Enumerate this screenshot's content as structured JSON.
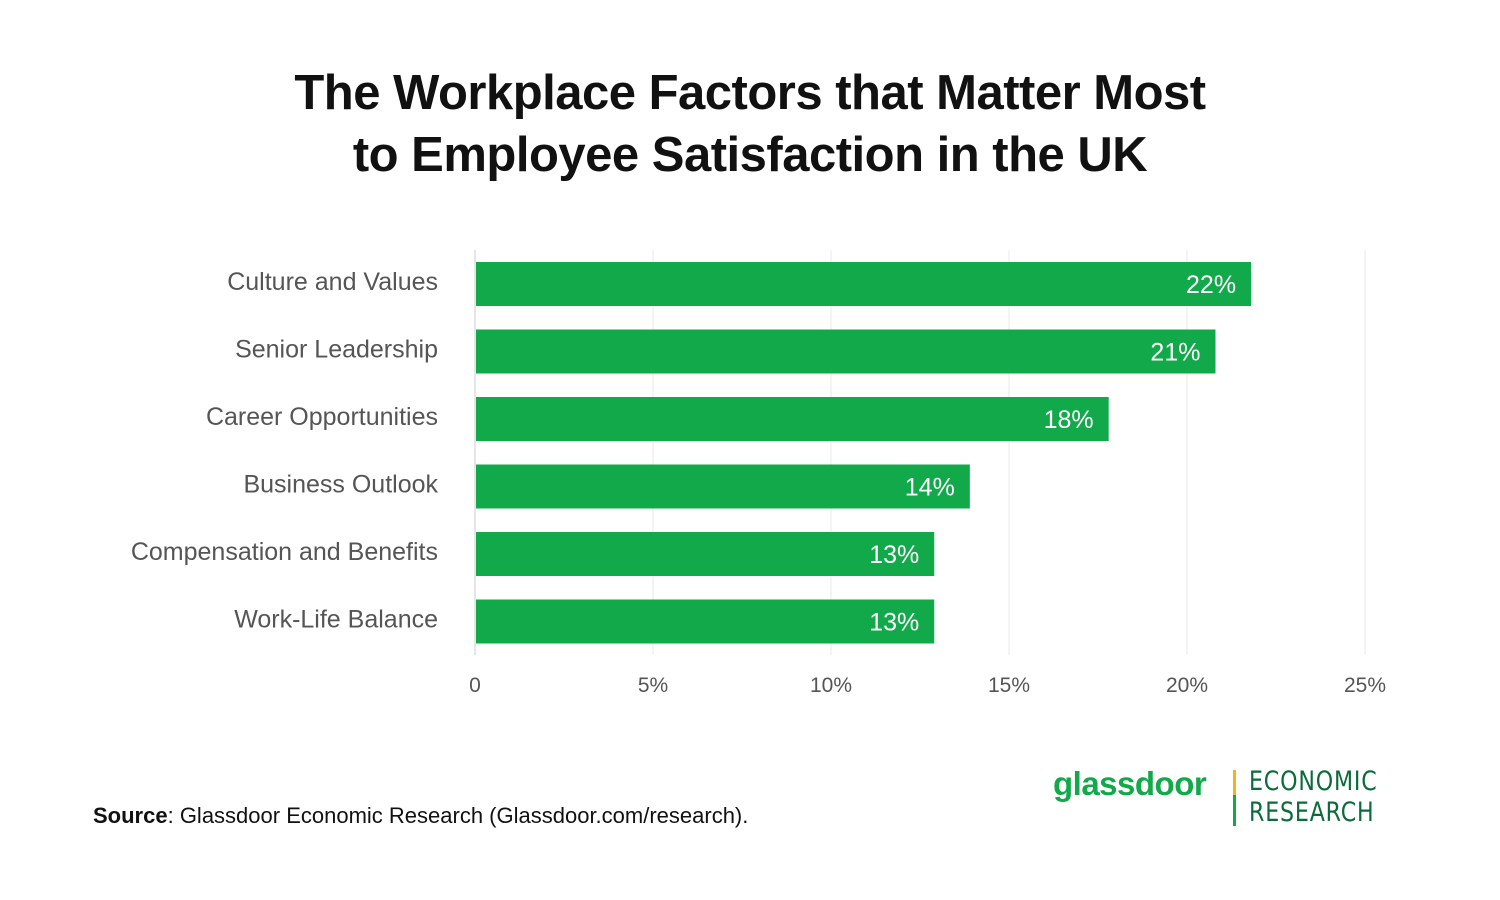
{
  "title": {
    "line1": "The Workplace Factors that Matter Most",
    "line2": "to Employee Satisfaction in the UK"
  },
  "chart_data": {
    "type": "bar",
    "orientation": "horizontal",
    "categories": [
      "Culture and Values",
      "Senior Leadership",
      "Career Opportunities",
      "Business Outlook",
      "Compensation and Benefits",
      "Work-Life Balance"
    ],
    "values": [
      21.8,
      20.8,
      17.8,
      13.9,
      12.9,
      12.9
    ],
    "data_labels": [
      "22%",
      "21%",
      "18%",
      "14%",
      "13%",
      "13%"
    ],
    "xlim": [
      0,
      25
    ],
    "xticks": [
      0,
      5,
      10,
      15,
      20,
      25
    ],
    "xtick_labels": [
      "0",
      "5%",
      "10%",
      "15%",
      "20%",
      "25%"
    ],
    "grid": "vertical",
    "bar_color": "#12a94a",
    "grid_color": "#e8e8e8"
  },
  "source": {
    "label": "Source",
    "text": ": Glassdoor Economic Research (Glassdoor.com/research)."
  },
  "logo": {
    "brand": "glassdoor",
    "line1": "ECONOMIC",
    "line2": "RESEARCH",
    "brand_color": "#12a94a",
    "er_color": "#0b6b3a",
    "divider_color_top": "#f2b41b",
    "divider_color_bottom": "#12a94a"
  }
}
